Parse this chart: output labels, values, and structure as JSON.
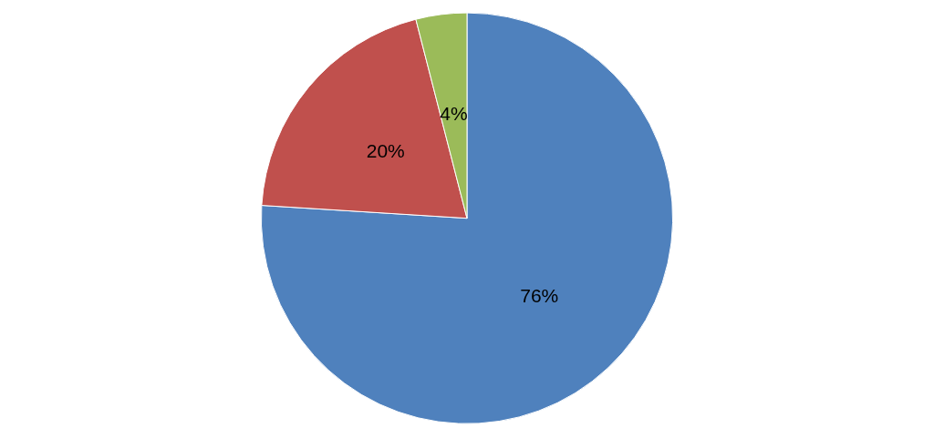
{
  "chart_data": {
    "type": "pie",
    "categories": [
      null,
      null,
      null
    ],
    "values": [
      76,
      20,
      4
    ],
    "colors": [
      "#4f81bd",
      "#c0504d",
      "#9bbb59"
    ],
    "value_labels": [
      "76%",
      "20%",
      "4%"
    ]
  }
}
